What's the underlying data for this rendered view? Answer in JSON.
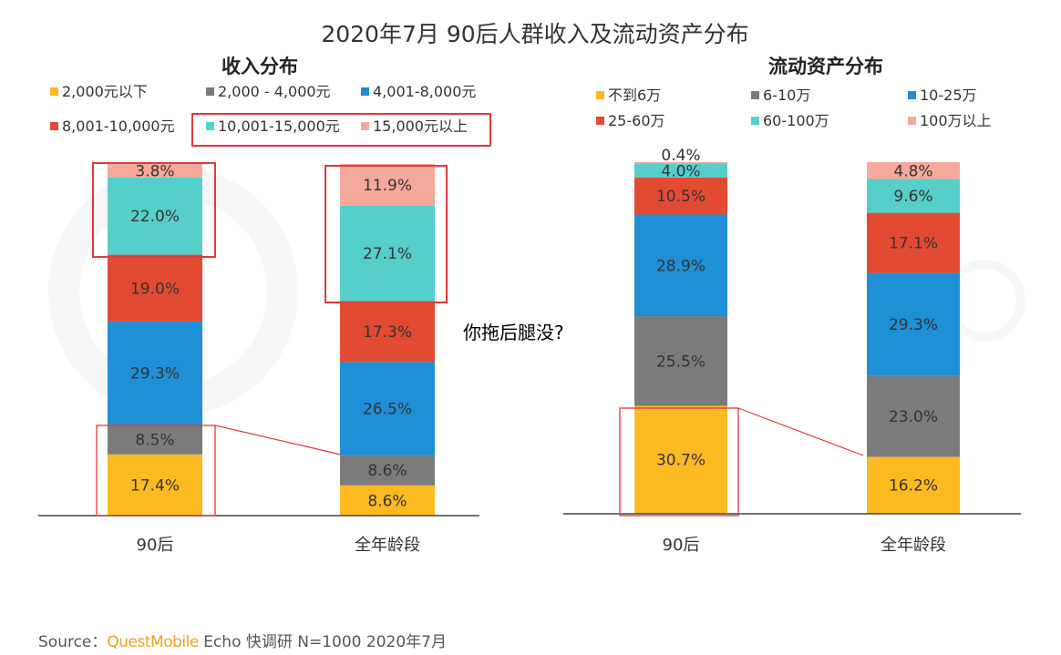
{
  "title": "2020年7月 90后人群收入及流动资产分布",
  "annotation": "你拖后腿没?",
  "source": {
    "prefix": "Source：",
    "brand": "QuestMobile",
    "rest": " Echo 快调研 N=1000 2020年7月"
  },
  "colors": {
    "yellow": "#fbba22",
    "gray": "#7b7b7b",
    "blue": "#1f8fd6",
    "red": "#e34a33",
    "teal": "#56cfcb",
    "pink": "#f5a99c",
    "highlight": "#e03a3a"
  },
  "chart_data": [
    {
      "type": "bar",
      "stacked": true,
      "title": "收入分布",
      "categories": [
        "90后",
        "全年龄段"
      ],
      "ylim": [
        0,
        100
      ],
      "legend": "top",
      "series": [
        {
          "name": "2,000元以下",
          "color": "#fbba22",
          "values": [
            17.4,
            8.6
          ]
        },
        {
          "name": "2,000 - 4,000元",
          "color": "#7b7b7b",
          "values": [
            8.5,
            8.6
          ]
        },
        {
          "name": "4,001-8,000元",
          "color": "#1f8fd6",
          "values": [
            29.3,
            26.5
          ]
        },
        {
          "name": "8,001-10,000元",
          "color": "#e34a33",
          "values": [
            19.0,
            17.3
          ]
        },
        {
          "name": "10,001-15,000元",
          "color": "#56cfcb",
          "values": [
            22.0,
            27.1
          ]
        },
        {
          "name": "15,000元以上",
          "color": "#f5a99c",
          "values": [
            3.8,
            11.9
          ]
        }
      ],
      "data_labels": [
        [
          "17.4%",
          "8.5%",
          "29.3%",
          "19.0%",
          "22.0%",
          "3.8%"
        ],
        [
          "8.6%",
          "8.6%",
          "26.5%",
          "17.3%",
          "27.1%",
          "11.9%"
        ]
      ]
    },
    {
      "type": "bar",
      "stacked": true,
      "title": "流动资产分布",
      "categories": [
        "90后",
        "全年龄段"
      ],
      "ylim": [
        0,
        100
      ],
      "legend": "top",
      "series": [
        {
          "name": "不到6万",
          "color": "#fbba22",
          "values": [
            30.7,
            16.2
          ]
        },
        {
          "name": "6-10万",
          "color": "#7b7b7b",
          "values": [
            25.5,
            23.0
          ]
        },
        {
          "name": "10-25万",
          "color": "#1f8fd6",
          "values": [
            28.9,
            29.3
          ]
        },
        {
          "name": "25-60万",
          "color": "#e34a33",
          "values": [
            10.5,
            17.1
          ]
        },
        {
          "name": "60-100万",
          "color": "#56cfcb",
          "values": [
            4.0,
            9.6
          ]
        },
        {
          "name": "100万以上",
          "color": "#f5a99c",
          "values": [
            0.4,
            4.8
          ]
        }
      ],
      "data_labels": [
        [
          "30.7%",
          "25.5%",
          "28.9%",
          "10.5%",
          "4.0%",
          "0.4%"
        ],
        [
          "16.2%",
          "23.0%",
          "29.3%",
          "17.1%",
          "9.6%",
          "4.8%"
        ]
      ]
    }
  ]
}
